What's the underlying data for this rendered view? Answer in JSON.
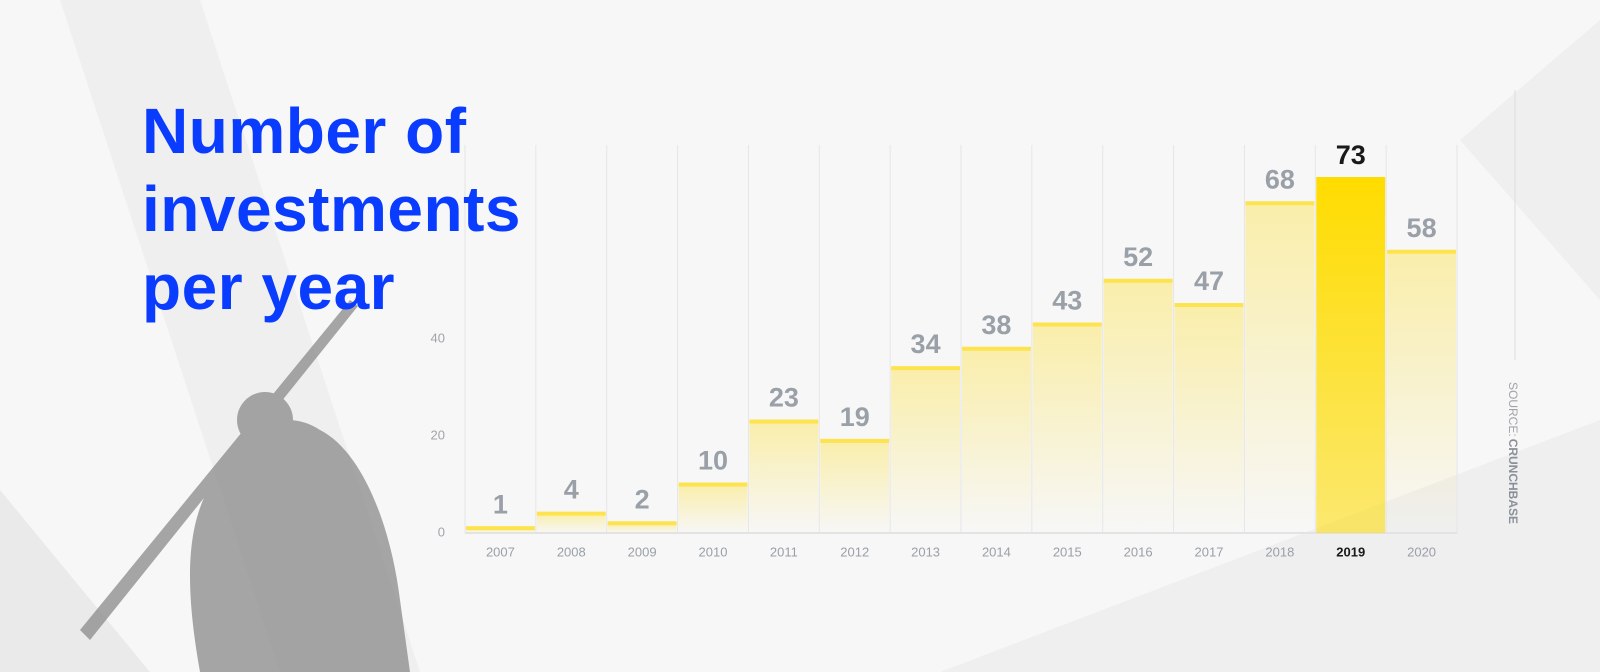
{
  "chart_data": {
    "type": "bar",
    "title": "Number of investments per year",
    "categories": [
      "2007",
      "2008",
      "2009",
      "2010",
      "2011",
      "2012",
      "2013",
      "2014",
      "2015",
      "2016",
      "2017",
      "2018",
      "2019",
      "2020"
    ],
    "values": [
      1,
      4,
      2,
      10,
      23,
      19,
      34,
      38,
      43,
      52,
      47,
      68,
      73,
      58
    ],
    "colors": [
      "#fde34d",
      "#fde34d",
      "#fde34d",
      "#fde34d",
      "#fde34d",
      "#fde34d",
      "#fde34d",
      "#fde34d",
      "#fde34d",
      "#fde34d",
      "#fde34d",
      "#fde34d",
      "#ffdc00",
      "#fde34d"
    ],
    "label_colors": [
      "#9aa0a8",
      "#9aa0a8",
      "#9aa0a8",
      "#9aa0a8",
      "#9aa0a8",
      "#9aa0a8",
      "#9aa0a8",
      "#9aa0a8",
      "#9aa0a8",
      "#9aa0a8",
      "#9aa0a8",
      "#9aa0a8",
      "#1a1a1a",
      "#9aa0a8"
    ],
    "ylim": [
      0,
      80
    ],
    "yticks": [
      0,
      20,
      40
    ],
    "source": {
      "prefix": "SOURCE:",
      "name": "CRUNCHBASE"
    }
  }
}
